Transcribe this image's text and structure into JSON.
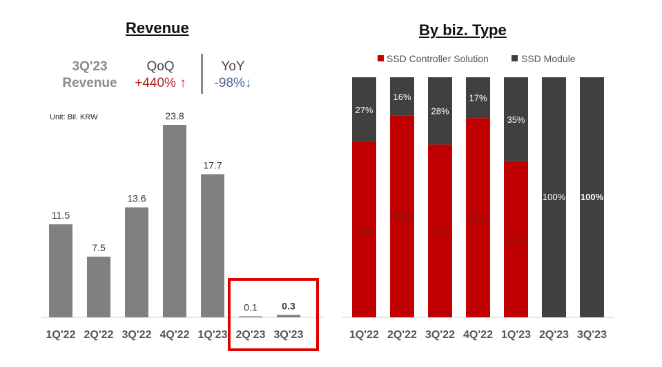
{
  "chart_data": [
    {
      "type": "bar",
      "title": "Revenue",
      "unit": "Unit: Bil. KRW",
      "categories": [
        "1Q'22",
        "2Q'22",
        "3Q'22",
        "4Q'22",
        "1Q'23",
        "2Q'23",
        "3Q'23"
      ],
      "values": [
        11.5,
        7.5,
        13.6,
        23.8,
        17.7,
        0.1,
        0.3
      ],
      "value_labels": [
        "11.5",
        "7.5",
        "13.6",
        "23.8",
        "17.7",
        "0.1",
        "0.3"
      ],
      "highlighted": [
        "2Q'23",
        "3Q'23"
      ],
      "color": "#808080",
      "highlight_color": "#e00000"
    },
    {
      "type": "bar",
      "stacked": true,
      "title": "By biz. Type",
      "categories": [
        "1Q'22",
        "2Q'22",
        "3Q'22",
        "4Q'22",
        "1Q'23",
        "2Q'23",
        "3Q'23"
      ],
      "legend": "top",
      "series": [
        {
          "name": "SSD Controller Solution",
          "color": "#c00000",
          "values": [
            73,
            84,
            72,
            83,
            65,
            0,
            0
          ],
          "labels": [
            "73%",
            "84%",
            "72%",
            "83%",
            "65%",
            "",
            ""
          ]
        },
        {
          "name": "SSD Module",
          "color": "#404040",
          "values": [
            27,
            16,
            28,
            17,
            35,
            100,
            100
          ],
          "labels": [
            "27%",
            "16%",
            "28%",
            "17%",
            "35%",
            "100%",
            "100%"
          ]
        }
      ]
    }
  ],
  "summary": {
    "period": "3Q'23",
    "metric": "Revenue",
    "qoq_label": "QoQ",
    "qoq_value": "+440% ↑",
    "yoy_label": "YoY",
    "yoy_value": "-98%↓",
    "qoq_color": "#b22222",
    "yoy_color": "#44678f"
  }
}
